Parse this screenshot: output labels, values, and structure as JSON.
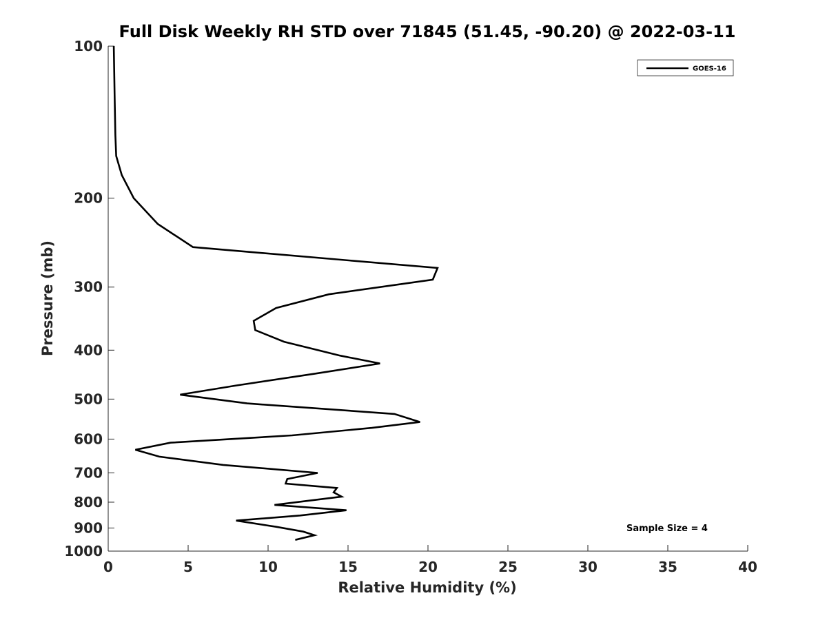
{
  "chart_data": {
    "type": "line",
    "title": "Full Disk Weekly RH STD over 71845 (51.45, -90.20) @ 2022-03-11",
    "xlabel": "Relative Humidity (%)",
    "ylabel": "Pressure (mb)",
    "xlim": [
      0,
      40
    ],
    "ylim": [
      1000,
      100
    ],
    "yscale": "log",
    "grid": false,
    "legend_position": "top-right",
    "x_ticks": [
      0,
      5,
      10,
      15,
      20,
      25,
      30,
      35,
      40
    ],
    "y_ticks": [
      100,
      200,
      300,
      400,
      500,
      600,
      700,
      800,
      900,
      1000
    ],
    "series": [
      {
        "name": "GOES-16",
        "color": "#000000",
        "points": [
          [
            0.35,
            100
          ],
          [
            0.4,
            125
          ],
          [
            0.45,
            150
          ],
          [
            0.5,
            165
          ],
          [
            0.85,
            180
          ],
          [
            1.6,
            200
          ],
          [
            3.1,
            225
          ],
          [
            5.3,
            250
          ],
          [
            20.6,
            275
          ],
          [
            20.3,
            290
          ],
          [
            13.8,
            310
          ],
          [
            10.5,
            330
          ],
          [
            9.1,
            350
          ],
          [
            9.2,
            365
          ],
          [
            11.0,
            385
          ],
          [
            14.5,
            410
          ],
          [
            17.0,
            425
          ],
          [
            13.0,
            445
          ],
          [
            8.0,
            470
          ],
          [
            4.5,
            490
          ],
          [
            8.7,
            510
          ],
          [
            17.9,
            535
          ],
          [
            19.5,
            555
          ],
          [
            16.5,
            570
          ],
          [
            11.5,
            590
          ],
          [
            3.9,
            610
          ],
          [
            1.7,
            630
          ],
          [
            3.2,
            650
          ],
          [
            7.2,
            675
          ],
          [
            13.1,
            700
          ],
          [
            11.2,
            720
          ],
          [
            11.1,
            735
          ],
          [
            14.3,
            750
          ],
          [
            14.1,
            765
          ],
          [
            14.6,
            780
          ],
          [
            10.4,
            810
          ],
          [
            14.9,
            830
          ],
          [
            12.0,
            850
          ],
          [
            8.0,
            870
          ],
          [
            10.5,
            895
          ],
          [
            12.2,
            915
          ],
          [
            12.9,
            930
          ],
          [
            11.7,
            950
          ]
        ]
      }
    ],
    "annotations": [
      "Sample Size = 4"
    ]
  }
}
